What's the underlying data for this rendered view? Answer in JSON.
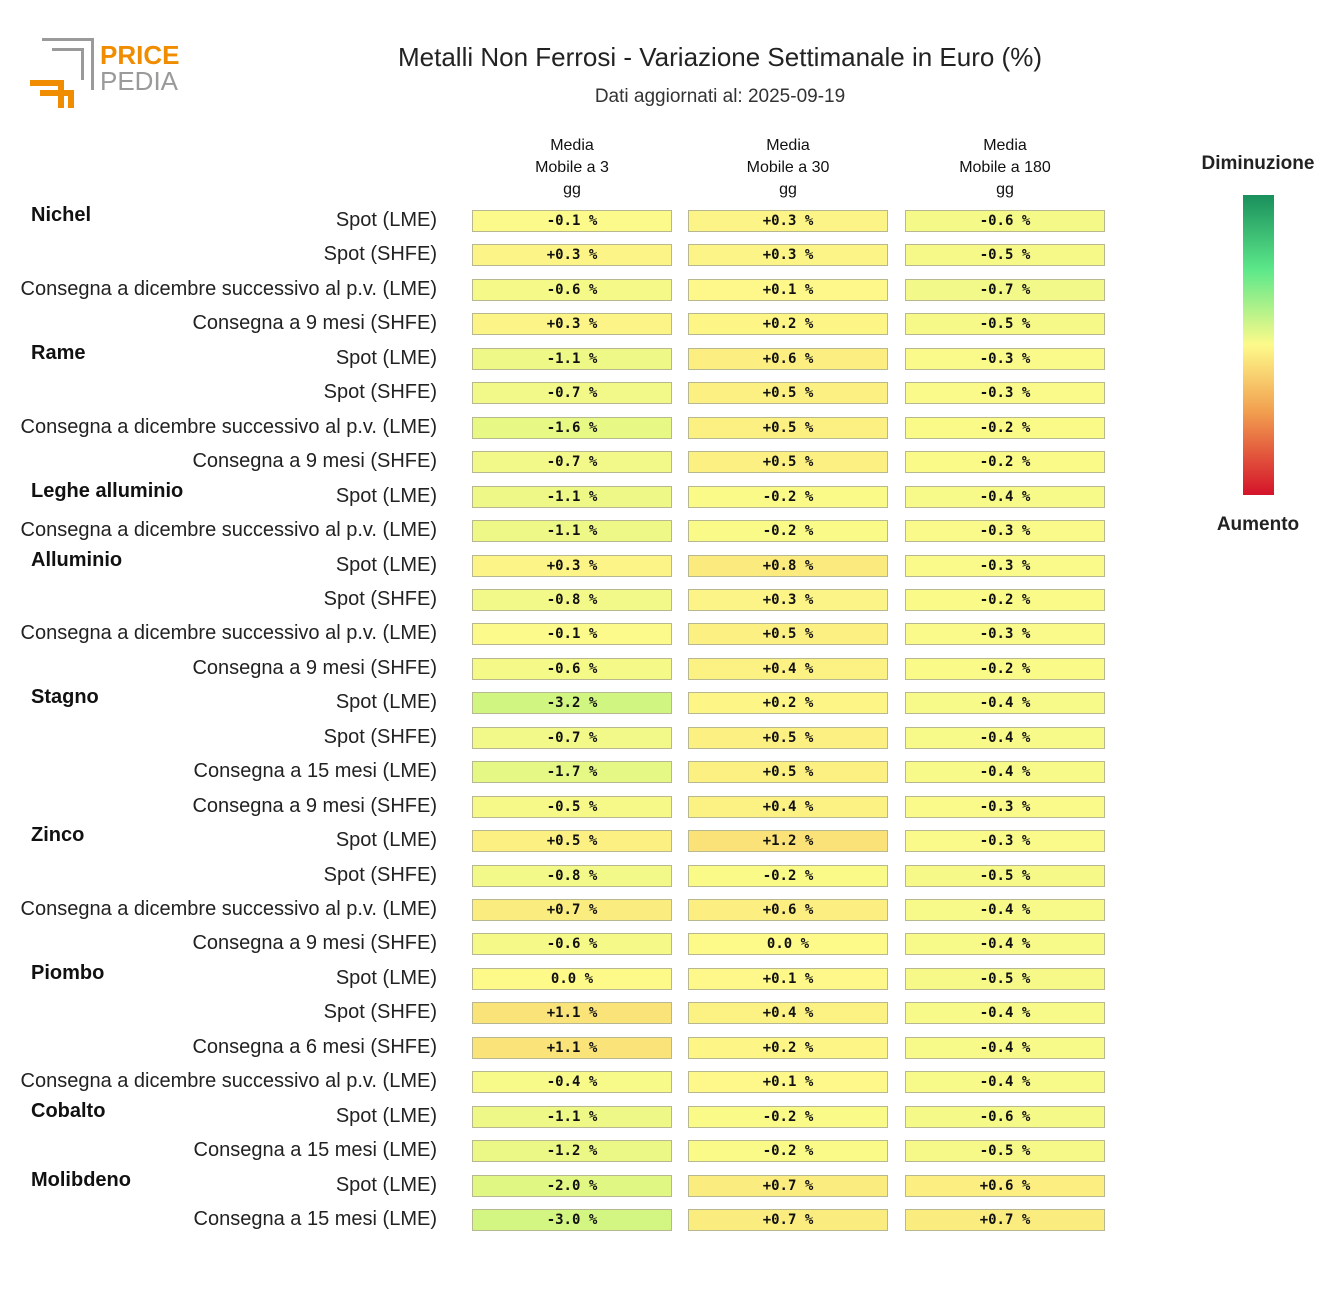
{
  "logo": {
    "line1": "PRICE",
    "line2": "PEDIA"
  },
  "title": "Metalli Non Ferrosi - Variazione Settimanale in Euro (%)",
  "subtitle": "Dati aggiornati al: 2025-09-19",
  "legend": {
    "top": "Diminuzione",
    "bottom": "Aumento",
    "colors": [
      "#1a8f5c",
      "#5de88a",
      "#fdfa8a",
      "#f2a050",
      "#d4132a"
    ]
  },
  "chart_data": {
    "type": "heatmap",
    "title": "Metalli Non Ferrosi - Variazione Settimanale in Euro (%)",
    "columns": [
      [
        "Media",
        "Mobile a 3",
        "gg"
      ],
      [
        "Media",
        "Mobile a 30",
        "gg"
      ],
      [
        "Media",
        "Mobile a 180",
        "gg"
      ]
    ],
    "unit": "%",
    "groups": [
      {
        "name": "Nichel",
        "rows": [
          {
            "label": "Spot (LME)",
            "values": [
              -0.1,
              0.3,
              -0.6
            ]
          },
          {
            "label": "Spot (SHFE)",
            "values": [
              0.3,
              0.3,
              -0.5
            ]
          },
          {
            "label": "Consegna a dicembre successivo al p.v. (LME)",
            "values": [
              -0.6,
              0.1,
              -0.7
            ]
          },
          {
            "label": "Consegna a 9 mesi (SHFE)",
            "values": [
              0.3,
              0.2,
              -0.5
            ]
          }
        ]
      },
      {
        "name": "Rame",
        "rows": [
          {
            "label": "Spot (LME)",
            "values": [
              -1.1,
              0.6,
              -0.3
            ]
          },
          {
            "label": "Spot (SHFE)",
            "values": [
              -0.7,
              0.5,
              -0.3
            ]
          },
          {
            "label": "Consegna a dicembre successivo al p.v. (LME)",
            "values": [
              -1.6,
              0.5,
              -0.2
            ]
          },
          {
            "label": "Consegna a 9 mesi (SHFE)",
            "values": [
              -0.7,
              0.5,
              -0.2
            ]
          }
        ]
      },
      {
        "name": "Leghe alluminio",
        "rows": [
          {
            "label": "Spot (LME)",
            "values": [
              -1.1,
              -0.2,
              -0.4
            ]
          },
          {
            "label": "Consegna a dicembre successivo al p.v. (LME)",
            "values": [
              -1.1,
              -0.2,
              -0.3
            ]
          }
        ]
      },
      {
        "name": "Alluminio",
        "rows": [
          {
            "label": "Spot (LME)",
            "values": [
              0.3,
              0.8,
              -0.3
            ]
          },
          {
            "label": "Spot (SHFE)",
            "values": [
              -0.8,
              0.3,
              -0.2
            ]
          },
          {
            "label": "Consegna a dicembre successivo al p.v. (LME)",
            "values": [
              -0.1,
              0.5,
              -0.3
            ]
          },
          {
            "label": "Consegna a 9 mesi (SHFE)",
            "values": [
              -0.6,
              0.4,
              -0.2
            ]
          }
        ]
      },
      {
        "name": "Stagno",
        "rows": [
          {
            "label": "Spot (LME)",
            "values": [
              -3.2,
              0.2,
              -0.4
            ]
          },
          {
            "label": "Spot (SHFE)",
            "values": [
              -0.7,
              0.5,
              -0.4
            ]
          },
          {
            "label": "Consegna a 15 mesi (LME)",
            "values": [
              -1.7,
              0.5,
              -0.4
            ]
          },
          {
            "label": "Consegna a 9 mesi (SHFE)",
            "values": [
              -0.5,
              0.4,
              -0.3
            ]
          }
        ]
      },
      {
        "name": "Zinco",
        "rows": [
          {
            "label": "Spot (LME)",
            "values": [
              0.5,
              1.2,
              -0.3
            ]
          },
          {
            "label": "Spot (SHFE)",
            "values": [
              -0.8,
              -0.2,
              -0.5
            ]
          },
          {
            "label": "Consegna a dicembre successivo al p.v. (LME)",
            "values": [
              0.7,
              0.6,
              -0.4
            ]
          },
          {
            "label": "Consegna a 9 mesi (SHFE)",
            "values": [
              -0.6,
              0.0,
              -0.4
            ]
          }
        ]
      },
      {
        "name": "Piombo",
        "rows": [
          {
            "label": "Spot (LME)",
            "values": [
              0.0,
              0.1,
              -0.5
            ]
          },
          {
            "label": "Spot (SHFE)",
            "values": [
              1.1,
              0.4,
              -0.4
            ]
          },
          {
            "label": "Consegna a 6 mesi (SHFE)",
            "values": [
              1.1,
              0.2,
              -0.4
            ]
          },
          {
            "label": "Consegna a dicembre successivo al p.v. (LME)",
            "values": [
              -0.4,
              0.1,
              -0.4
            ]
          }
        ]
      },
      {
        "name": "Cobalto",
        "rows": [
          {
            "label": "Spot (LME)",
            "values": [
              -1.1,
              -0.2,
              -0.6
            ]
          },
          {
            "label": "Consegna a 15 mesi (LME)",
            "values": [
              -1.2,
              -0.2,
              -0.5
            ]
          }
        ]
      },
      {
        "name": "Molibdeno",
        "rows": [
          {
            "label": "Spot (LME)",
            "values": [
              -2.0,
              0.7,
              0.6
            ]
          },
          {
            "label": "Consegna a 15 mesi (LME)",
            "values": [
              -3.0,
              0.7,
              0.7
            ]
          }
        ]
      }
    ]
  }
}
